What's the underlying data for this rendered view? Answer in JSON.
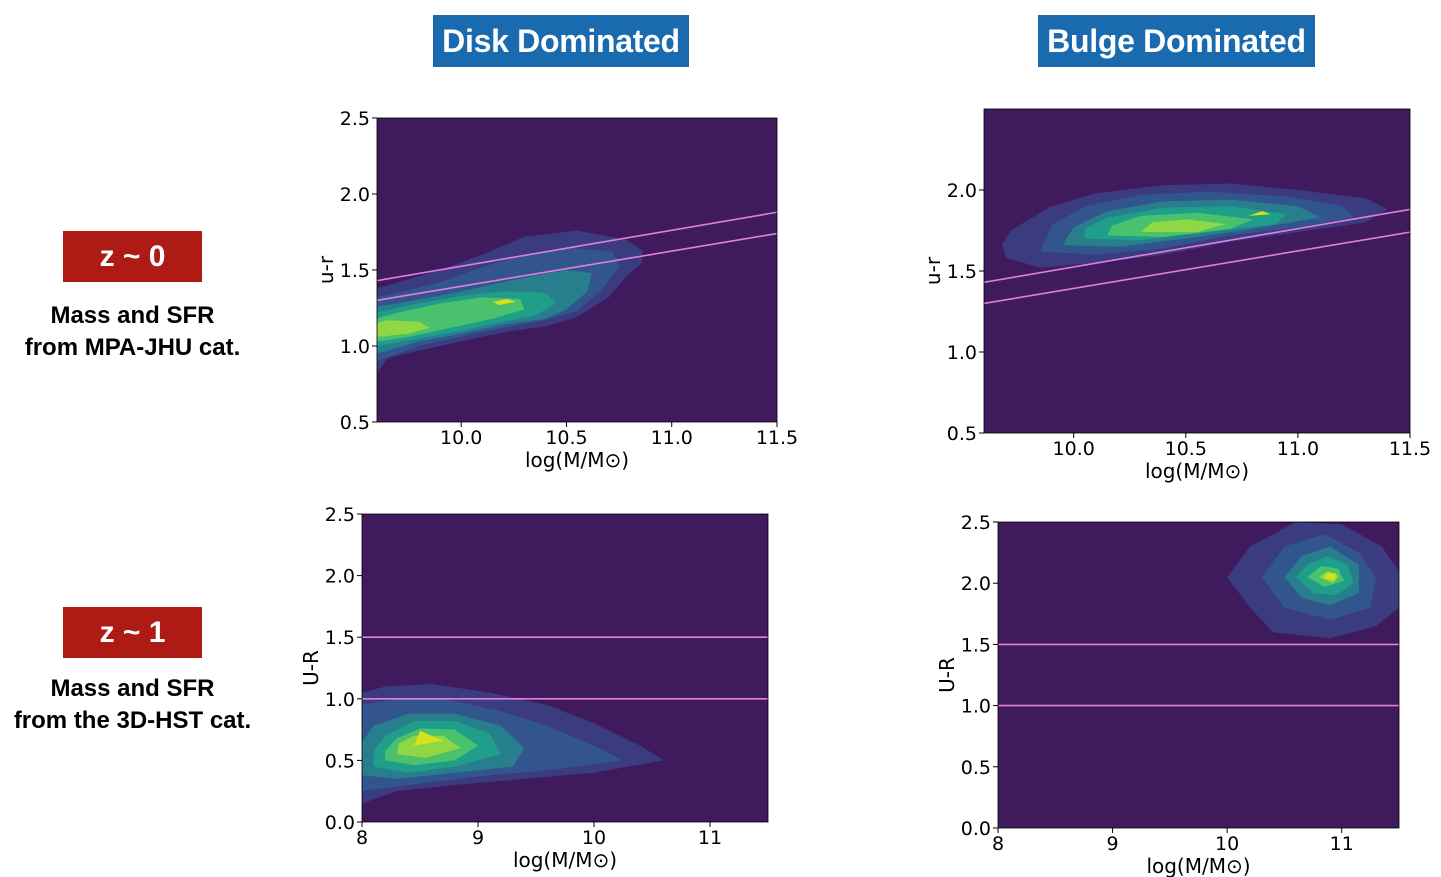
{
  "columns": [
    {
      "title": "Disk Dominated"
    },
    {
      "title": "Bulge Dominated"
    }
  ],
  "rows": [
    {
      "badge": "z ~ 0",
      "desc_line1": "Mass and SFR",
      "desc_line2": "from MPA-JHU cat."
    },
    {
      "badge": "z ~ 1",
      "desc_line1": "Mass and SFR",
      "desc_line2": "from the 3D-HST cat."
    }
  ],
  "colors": {
    "background": "#440154",
    "plot_bg": "#3f1a5c",
    "guide_line": "#e27ee0",
    "contour_levels": [
      "#3b3b80",
      "#31558c",
      "#277f8e",
      "#1f9e89",
      "#4ac16d",
      "#8fd744",
      "#d5e21a"
    ]
  },
  "chart_data": [
    {
      "type": "contour",
      "name": "disk-z0",
      "xlabel": "log(M/M⊙)",
      "ylabel": "u-r",
      "xlim": [
        9.6,
        11.5
      ],
      "ylim": [
        0.5,
        2.5
      ],
      "xticks": [
        "10.0",
        "10.5",
        "11.0",
        "11.5"
      ],
      "xtick_values": [
        10.0,
        10.5,
        11.0,
        11.5
      ],
      "yticks": [
        "0.5",
        "1.0",
        "1.5",
        "2.0",
        "2.5"
      ],
      "ytick_values": [
        0.5,
        1.0,
        1.5,
        2.0,
        2.5
      ],
      "lines": [
        {
          "x": [
            9.6,
            11.5
          ],
          "y": [
            1.43,
            1.88
          ]
        },
        {
          "x": [
            9.6,
            11.5
          ],
          "y": [
            1.3,
            1.74
          ]
        }
      ],
      "contours": [
        [
          [
            9.6,
            0.82
          ],
          [
            9.65,
            0.92
          ],
          [
            9.8,
            0.97
          ],
          [
            10.0,
            1.03
          ],
          [
            10.2,
            1.09
          ],
          [
            10.4,
            1.13
          ],
          [
            10.55,
            1.19
          ],
          [
            10.7,
            1.32
          ],
          [
            10.78,
            1.45
          ],
          [
            10.86,
            1.55
          ],
          [
            10.86,
            1.63
          ],
          [
            10.78,
            1.7
          ],
          [
            10.55,
            1.76
          ],
          [
            10.3,
            1.72
          ],
          [
            10.1,
            1.6
          ],
          [
            9.9,
            1.5
          ],
          [
            9.7,
            1.42
          ],
          [
            9.6,
            1.38
          ]
        ],
        [
          [
            9.6,
            0.9
          ],
          [
            9.8,
            1.0
          ],
          [
            10.0,
            1.06
          ],
          [
            10.2,
            1.12
          ],
          [
            10.4,
            1.17
          ],
          [
            10.55,
            1.23
          ],
          [
            10.66,
            1.36
          ],
          [
            10.75,
            1.52
          ],
          [
            10.72,
            1.62
          ],
          [
            10.5,
            1.65
          ],
          [
            10.3,
            1.6
          ],
          [
            10.1,
            1.52
          ],
          [
            9.9,
            1.42
          ],
          [
            9.7,
            1.35
          ],
          [
            9.6,
            1.32
          ]
        ],
        [
          [
            9.6,
            0.95
          ],
          [
            9.8,
            1.03
          ],
          [
            10.0,
            1.08
          ],
          [
            10.2,
            1.14
          ],
          [
            10.4,
            1.18
          ],
          [
            10.5,
            1.24
          ],
          [
            10.6,
            1.36
          ],
          [
            10.62,
            1.48
          ],
          [
            10.5,
            1.5
          ],
          [
            10.3,
            1.45
          ],
          [
            10.1,
            1.39
          ],
          [
            9.9,
            1.33
          ],
          [
            9.7,
            1.28
          ],
          [
            9.6,
            1.26
          ]
        ],
        [
          [
            9.6,
            1.0
          ],
          [
            9.8,
            1.05
          ],
          [
            10.0,
            1.1
          ],
          [
            10.2,
            1.16
          ],
          [
            10.35,
            1.2
          ],
          [
            10.45,
            1.28
          ],
          [
            10.4,
            1.35
          ],
          [
            10.2,
            1.36
          ],
          [
            10.0,
            1.33
          ],
          [
            9.8,
            1.28
          ],
          [
            9.6,
            1.22
          ]
        ],
        [
          [
            9.6,
            1.03
          ],
          [
            9.75,
            1.06
          ],
          [
            9.95,
            1.12
          ],
          [
            10.15,
            1.18
          ],
          [
            10.3,
            1.24
          ],
          [
            10.28,
            1.31
          ],
          [
            10.1,
            1.32
          ],
          [
            9.9,
            1.28
          ],
          [
            9.7,
            1.22
          ],
          [
            9.6,
            1.18
          ]
        ],
        [
          [
            9.6,
            1.06
          ],
          [
            9.75,
            1.08
          ],
          [
            9.85,
            1.12
          ],
          [
            9.8,
            1.16
          ],
          [
            9.65,
            1.17
          ],
          [
            9.6,
            1.15
          ]
        ],
        [
          [
            10.18,
            1.27
          ],
          [
            10.26,
            1.29
          ],
          [
            10.22,
            1.31
          ],
          [
            10.15,
            1.29
          ]
        ]
      ]
    },
    {
      "type": "contour",
      "name": "bulge-z0",
      "xlabel": "log(M/M⊙)",
      "ylabel": "u-r",
      "xlim": [
        9.6,
        11.5
      ],
      "ylim": [
        0.5,
        2.5
      ],
      "xticks": [
        "10.0",
        "10.5",
        "11.0",
        "11.5"
      ],
      "xtick_values": [
        10.0,
        10.5,
        11.0,
        11.5
      ],
      "yticks": [
        "0.5",
        "1.0",
        "1.5",
        "2.0"
      ],
      "ytick_values": [
        0.5,
        1.0,
        1.5,
        2.0
      ],
      "lines": [
        {
          "x": [
            9.6,
            11.5
          ],
          "y": [
            1.43,
            1.88
          ]
        },
        {
          "x": [
            9.6,
            11.5
          ],
          "y": [
            1.3,
            1.74
          ]
        }
      ],
      "contours": [
        [
          [
            9.7,
            1.58
          ],
          [
            9.85,
            1.52
          ],
          [
            10.1,
            1.55
          ],
          [
            10.4,
            1.6
          ],
          [
            10.7,
            1.68
          ],
          [
            11.0,
            1.74
          ],
          [
            11.3,
            1.8
          ],
          [
            11.4,
            1.88
          ],
          [
            11.3,
            1.95
          ],
          [
            11.0,
            2.0
          ],
          [
            10.7,
            2.04
          ],
          [
            10.4,
            2.03
          ],
          [
            10.1,
            1.98
          ],
          [
            9.9,
            1.9
          ],
          [
            9.72,
            1.75
          ],
          [
            9.68,
            1.66
          ]
        ],
        [
          [
            9.85,
            1.62
          ],
          [
            10.1,
            1.6
          ],
          [
            10.4,
            1.64
          ],
          [
            10.7,
            1.72
          ],
          [
            11.0,
            1.77
          ],
          [
            11.25,
            1.83
          ],
          [
            11.2,
            1.9
          ],
          [
            10.95,
            1.96
          ],
          [
            10.6,
            1.99
          ],
          [
            10.3,
            1.97
          ],
          [
            10.05,
            1.9
          ],
          [
            9.9,
            1.78
          ]
        ],
        [
          [
            9.95,
            1.66
          ],
          [
            10.2,
            1.65
          ],
          [
            10.5,
            1.7
          ],
          [
            10.8,
            1.76
          ],
          [
            11.1,
            1.83
          ],
          [
            11.0,
            1.9
          ],
          [
            10.7,
            1.94
          ],
          [
            10.4,
            1.93
          ],
          [
            10.15,
            1.87
          ],
          [
            10.0,
            1.77
          ]
        ],
        [
          [
            10.05,
            1.7
          ],
          [
            10.3,
            1.69
          ],
          [
            10.6,
            1.74
          ],
          [
            10.9,
            1.79
          ],
          [
            10.95,
            1.85
          ],
          [
            10.7,
            1.9
          ],
          [
            10.4,
            1.89
          ],
          [
            10.15,
            1.83
          ],
          [
            10.05,
            1.76
          ]
        ],
        [
          [
            10.15,
            1.72
          ],
          [
            10.4,
            1.71
          ],
          [
            10.7,
            1.76
          ],
          [
            10.8,
            1.82
          ],
          [
            10.55,
            1.86
          ],
          [
            10.3,
            1.84
          ],
          [
            10.17,
            1.78
          ]
        ],
        [
          [
            10.3,
            1.74
          ],
          [
            10.55,
            1.74
          ],
          [
            10.68,
            1.79
          ],
          [
            10.5,
            1.82
          ],
          [
            10.35,
            1.8
          ]
        ],
        [
          [
            10.78,
            1.84
          ],
          [
            10.88,
            1.85
          ],
          [
            10.84,
            1.87
          ]
        ]
      ]
    },
    {
      "type": "contour",
      "name": "disk-z1",
      "xlabel": "log(M/M⊙)",
      "ylabel": "U-R",
      "xlim": [
        8.0,
        11.5
      ],
      "ylim": [
        0.0,
        2.5
      ],
      "xticks": [
        "8",
        "9",
        "10",
        "11"
      ],
      "xtick_values": [
        8,
        9,
        10,
        11
      ],
      "yticks": [
        "0.0",
        "0.5",
        "1.0",
        "1.5",
        "2.0",
        "2.5"
      ],
      "ytick_values": [
        0.0,
        0.5,
        1.0,
        1.5,
        2.0,
        2.5
      ],
      "lines": [
        {
          "x": [
            8.0,
            11.5
          ],
          "y": [
            1.5,
            1.5
          ]
        },
        {
          "x": [
            8.0,
            11.5
          ],
          "y": [
            1.0,
            1.0
          ]
        }
      ],
      "contours": [
        [
          [
            8.0,
            0.15
          ],
          [
            8.3,
            0.25
          ],
          [
            8.8,
            0.3
          ],
          [
            9.4,
            0.35
          ],
          [
            10.0,
            0.4
          ],
          [
            10.6,
            0.5
          ],
          [
            10.4,
            0.62
          ],
          [
            10.0,
            0.8
          ],
          [
            9.6,
            0.95
          ],
          [
            9.1,
            1.05
          ],
          [
            8.6,
            1.12
          ],
          [
            8.2,
            1.1
          ],
          [
            8.0,
            1.05
          ]
        ],
        [
          [
            8.0,
            0.25
          ],
          [
            8.4,
            0.3
          ],
          [
            9.0,
            0.37
          ],
          [
            9.6,
            0.42
          ],
          [
            10.25,
            0.5
          ],
          [
            10.0,
            0.62
          ],
          [
            9.6,
            0.78
          ],
          [
            9.2,
            0.9
          ],
          [
            8.7,
            1.0
          ],
          [
            8.3,
            1.0
          ],
          [
            8.0,
            0.95
          ]
        ],
        [
          [
            8.0,
            0.38
          ],
          [
            8.3,
            0.35
          ],
          [
            8.8,
            0.4
          ],
          [
            9.3,
            0.45
          ],
          [
            9.4,
            0.6
          ],
          [
            9.2,
            0.78
          ],
          [
            8.8,
            0.88
          ],
          [
            8.4,
            0.88
          ],
          [
            8.1,
            0.78
          ],
          [
            8.0,
            0.65
          ]
        ],
        [
          [
            8.1,
            0.45
          ],
          [
            8.4,
            0.4
          ],
          [
            8.8,
            0.45
          ],
          [
            9.2,
            0.55
          ],
          [
            9.1,
            0.72
          ],
          [
            8.8,
            0.82
          ],
          [
            8.45,
            0.82
          ],
          [
            8.2,
            0.7
          ],
          [
            8.1,
            0.58
          ]
        ],
        [
          [
            8.2,
            0.5
          ],
          [
            8.45,
            0.46
          ],
          [
            8.8,
            0.5
          ],
          [
            9.0,
            0.62
          ],
          [
            8.8,
            0.75
          ],
          [
            8.5,
            0.76
          ],
          [
            8.3,
            0.68
          ],
          [
            8.2,
            0.58
          ]
        ],
        [
          [
            8.3,
            0.55
          ],
          [
            8.55,
            0.52
          ],
          [
            8.85,
            0.6
          ],
          [
            8.7,
            0.7
          ],
          [
            8.45,
            0.7
          ],
          [
            8.32,
            0.64
          ]
        ],
        [
          [
            8.45,
            0.62
          ],
          [
            8.7,
            0.66
          ],
          [
            8.5,
            0.74
          ]
        ]
      ]
    },
    {
      "type": "contour",
      "name": "bulge-z1",
      "xlabel": "log(M/M⊙)",
      "ylabel": "U-R",
      "xlim": [
        8.0,
        11.5
      ],
      "ylim": [
        0.0,
        2.5
      ],
      "xticks": [
        "8",
        "9",
        "10",
        "11"
      ],
      "xtick_values": [
        8,
        9,
        10,
        11
      ],
      "yticks": [
        "0.0",
        "0.5",
        "1.0",
        "1.5",
        "2.0",
        "2.5"
      ],
      "ytick_values": [
        0.0,
        0.5,
        1.0,
        1.5,
        2.0,
        2.5
      ],
      "lines": [
        {
          "x": [
            8.0,
            11.5
          ],
          "y": [
            1.5,
            1.5
          ]
        },
        {
          "x": [
            8.0,
            11.5
          ],
          "y": [
            1.0,
            1.0
          ]
        }
      ],
      "contours": [
        [
          [
            10.0,
            2.05
          ],
          [
            10.2,
            1.8
          ],
          [
            10.4,
            1.6
          ],
          [
            10.9,
            1.55
          ],
          [
            11.3,
            1.65
          ],
          [
            11.5,
            1.8
          ],
          [
            11.5,
            2.1
          ],
          [
            11.35,
            2.3
          ],
          [
            11.0,
            2.48
          ],
          [
            10.6,
            2.5
          ],
          [
            10.2,
            2.3
          ]
        ],
        [
          [
            10.3,
            2.05
          ],
          [
            10.5,
            1.8
          ],
          [
            10.9,
            1.7
          ],
          [
            11.25,
            1.8
          ],
          [
            11.3,
            2.05
          ],
          [
            11.15,
            2.25
          ],
          [
            10.85,
            2.4
          ],
          [
            10.5,
            2.3
          ]
        ],
        [
          [
            10.5,
            2.05
          ],
          [
            10.65,
            1.88
          ],
          [
            10.9,
            1.82
          ],
          [
            11.15,
            1.92
          ],
          [
            11.15,
            2.15
          ],
          [
            10.9,
            2.3
          ],
          [
            10.65,
            2.22
          ]
        ],
        [
          [
            10.6,
            2.05
          ],
          [
            10.75,
            1.92
          ],
          [
            10.95,
            1.9
          ],
          [
            11.1,
            2.0
          ],
          [
            11.05,
            2.15
          ],
          [
            10.88,
            2.22
          ],
          [
            10.7,
            2.15
          ]
        ],
        [
          [
            10.7,
            2.05
          ],
          [
            10.85,
            1.97
          ],
          [
            11.02,
            2.02
          ],
          [
            10.97,
            2.12
          ],
          [
            10.82,
            2.14
          ]
        ],
        [
          [
            10.8,
            2.05
          ],
          [
            10.92,
            2.0
          ],
          [
            10.98,
            2.06
          ],
          [
            10.88,
            2.1
          ]
        ],
        [
          [
            10.84,
            2.04
          ],
          [
            10.94,
            2.02
          ],
          [
            10.95,
            2.08
          ],
          [
            10.87,
            2.08
          ]
        ]
      ]
    }
  ]
}
